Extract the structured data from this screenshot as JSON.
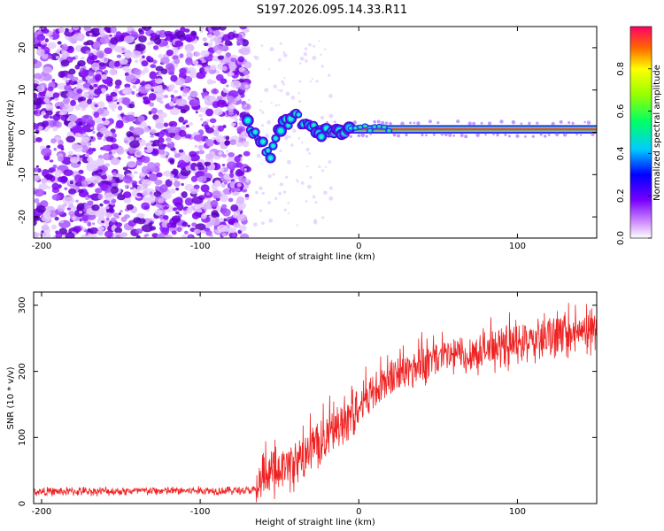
{
  "title": "S197.2026.095.14.33.R11",
  "chart_data": [
    {
      "type": "heatmap",
      "name": "spectrogram",
      "xlabel": "Height of straight line (km)",
      "ylabel": "Frequency (Hz)",
      "xlim": [
        -205,
        150
      ],
      "ylim": [
        -25,
        25
      ],
      "xticks": [
        -200,
        -100,
        0,
        100
      ],
      "yticks": [
        -20,
        -10,
        0,
        10,
        20
      ],
      "noise_region_km": [
        -205,
        -70
      ],
      "carrier_freq_hz": 0.7,
      "carrier_track": [
        {
          "x": -70,
          "y": 2
        },
        {
          "x": -65,
          "y": 0
        },
        {
          "x": -60,
          "y": -3
        },
        {
          "x": -56,
          "y": -6
        },
        {
          "x": -52,
          "y": 0
        },
        {
          "x": -46,
          "y": 2
        },
        {
          "x": -40,
          "y": 4
        },
        {
          "x": -36,
          "y": 2
        },
        {
          "x": -30,
          "y": 0.5
        },
        {
          "x": -20,
          "y": 0
        },
        {
          "x": 0,
          "y": 0.5
        },
        {
          "x": 50,
          "y": 0.7
        },
        {
          "x": 150,
          "y": 1
        }
      ],
      "colorbar": {
        "label": "Normalized spectral amplitude",
        "ticks": [
          0,
          0.2,
          0.4,
          0.6,
          0.8
        ],
        "range": [
          0,
          1
        ]
      }
    },
    {
      "type": "line",
      "name": "snr",
      "xlabel": "Height of straight line (km)",
      "ylabel": "SNR (10 * v/v)",
      "xlim": [
        -205,
        150
      ],
      "ylim": [
        0,
        320
      ],
      "xticks": [
        -200,
        -100,
        0,
        100
      ],
      "yticks": [
        0,
        100,
        200,
        300
      ],
      "series_color": "#ee2222",
      "trend": [
        {
          "x": -205,
          "y": 18
        },
        {
          "x": -65,
          "y": 20
        },
        {
          "x": -60,
          "y": 40
        },
        {
          "x": -40,
          "y": 60
        },
        {
          "x": -20,
          "y": 100
        },
        {
          "x": 0,
          "y": 150
        },
        {
          "x": 20,
          "y": 190
        },
        {
          "x": 50,
          "y": 220
        },
        {
          "x": 100,
          "y": 240
        },
        {
          "x": 150,
          "y": 260
        }
      ]
    }
  ]
}
